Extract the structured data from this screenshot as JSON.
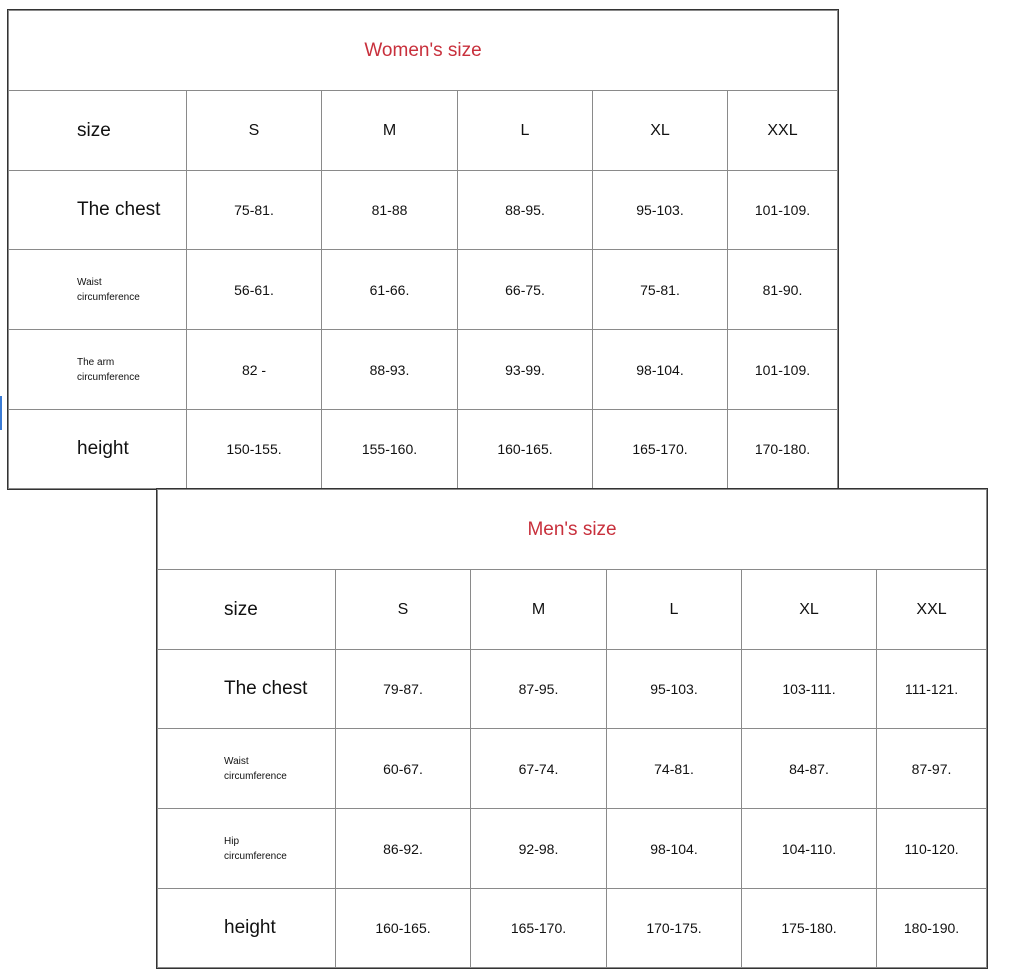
{
  "colors": {
    "title": "#c8303c",
    "border": "#8a8a8a"
  },
  "tables": [
    {
      "id": "women",
      "title": "Women's size",
      "header": {
        "label": "size",
        "sizes": [
          "S",
          "M",
          "L",
          "XL",
          "XXL"
        ]
      },
      "rows": [
        {
          "label": "The chest",
          "style": "big",
          "values": [
            "75-81.",
            "81-88",
            "88-95.",
            "95-103.",
            "101-109."
          ]
        },
        {
          "label": "Waist circumference",
          "style": "small",
          "values": [
            "56-61.",
            "61-66.",
            "66-75.",
            "75-81.",
            "81-90."
          ]
        },
        {
          "label": "The arm circumference",
          "style": "small",
          "values": [
            "82 -",
            "88-93.",
            "93-99.",
            "98-104.",
            "101-109."
          ]
        },
        {
          "label": "height",
          "style": "big",
          "values": [
            "150-155.",
            "155-160.",
            "160-165.",
            "165-170.",
            "170-180."
          ]
        }
      ]
    },
    {
      "id": "men",
      "title": "Men's size",
      "header": {
        "label": "size",
        "sizes": [
          "S",
          "M",
          "L",
          "XL",
          "XXL"
        ]
      },
      "rows": [
        {
          "label": "The chest",
          "style": "big",
          "values": [
            "79-87.",
            "87-95.",
            "95-103.",
            "103-111.",
            "111-121."
          ]
        },
        {
          "label": "Waist circumference",
          "style": "small",
          "values": [
            "60-67.",
            "67-74.",
            "74-81.",
            "84-87.",
            "87-97."
          ]
        },
        {
          "label": "Hip circumference",
          "style": "small",
          "values": [
            "86-92.",
            "92-98.",
            "98-104.",
            "104-110.",
            "110-120."
          ]
        },
        {
          "label": "height",
          "style": "big",
          "values": [
            "160-165.",
            "165-170.",
            "170-175.",
            "175-180.",
            "180-190."
          ]
        }
      ]
    }
  ]
}
